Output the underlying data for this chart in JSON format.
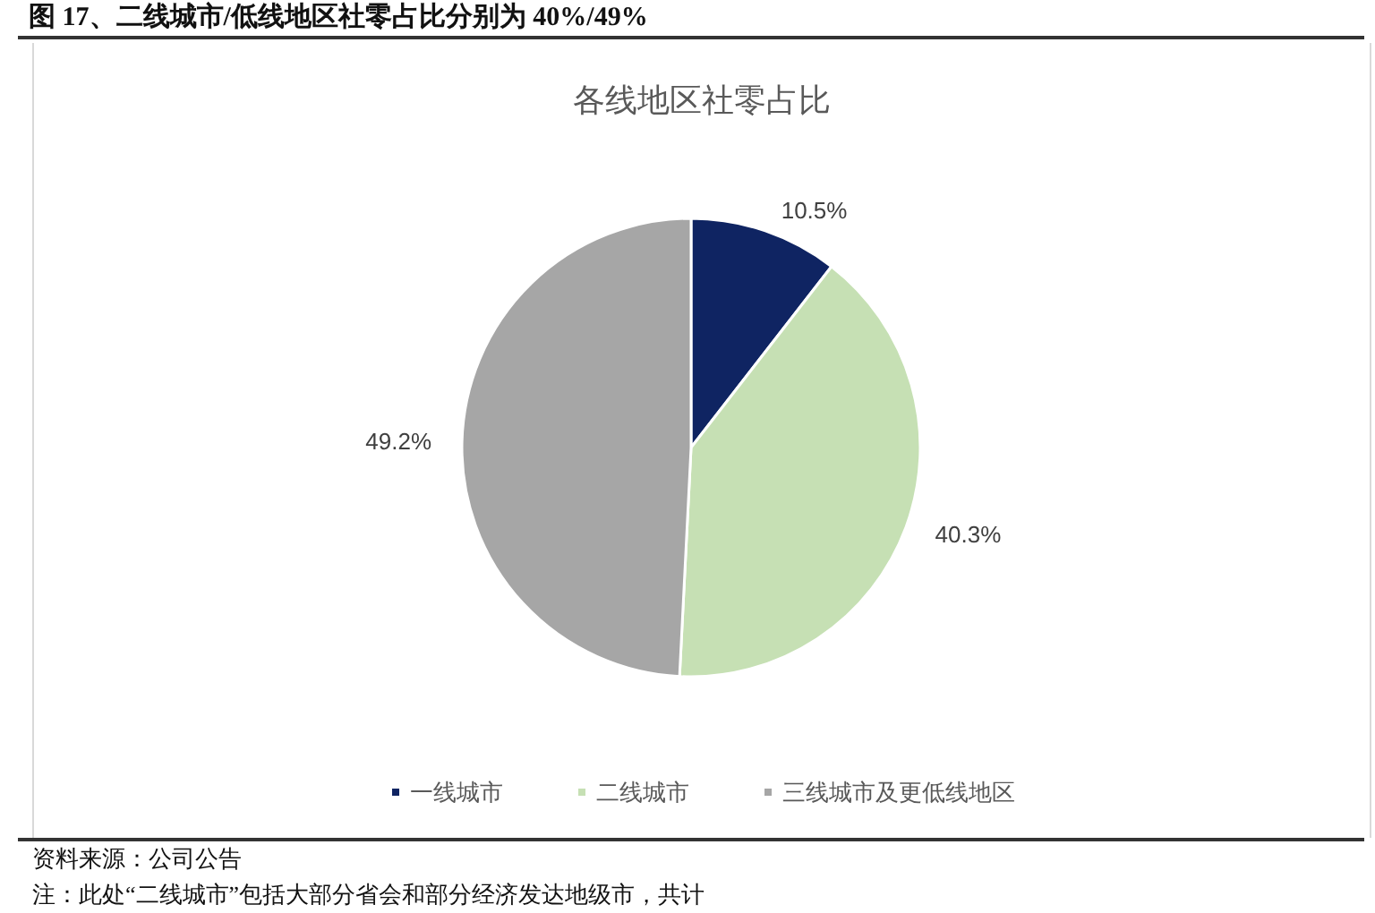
{
  "chart_data": {
    "type": "pie",
    "title": "图 17、二线城市/低线地区社零占比分别为 40%/49%",
    "subtitle": "各线地区社零占比",
    "categories": [
      "一线城市",
      "二线城市",
      "三线城市及更低线地区"
    ],
    "values": [
      10.5,
      40.3,
      49.2
    ],
    "colors": [
      "#0f2462",
      "#c6e0b4",
      "#a6a6a6"
    ],
    "value_labels": [
      "10.5%",
      "40.3%",
      "49.2%"
    ],
    "legend": "bottom",
    "annotations": [
      "资料来源：公司公告",
      "注：此处“二线城市”包括大部分省会和部分经济发达地级市，共计"
    ]
  }
}
